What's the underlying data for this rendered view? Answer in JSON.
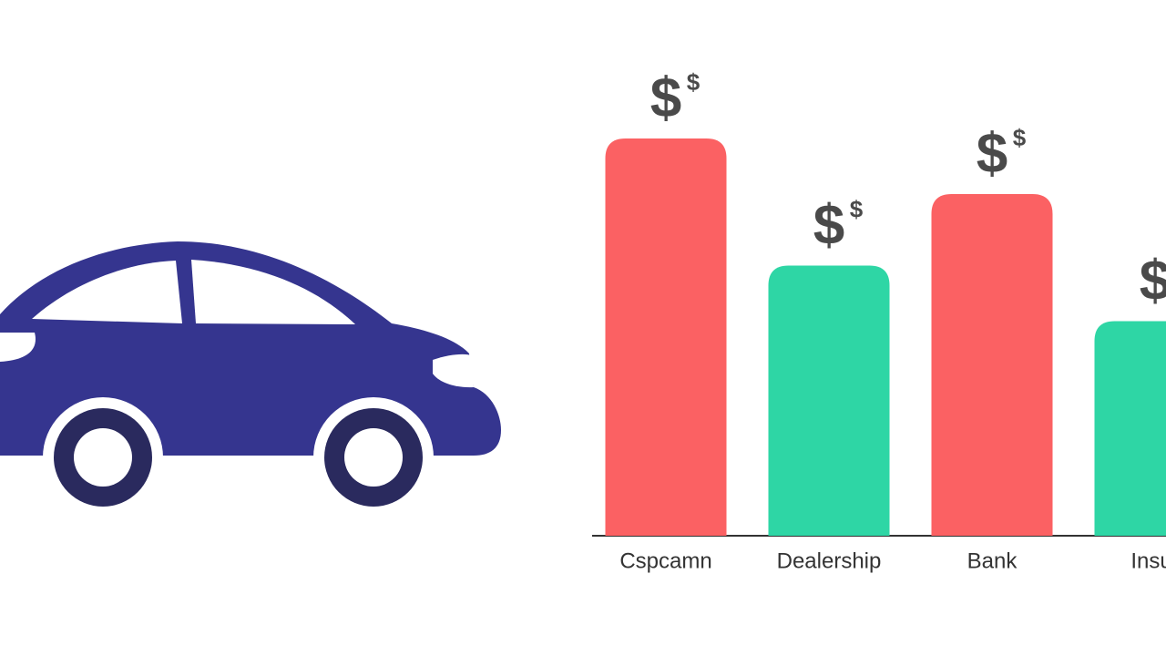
{
  "chart_data": {
    "type": "bar",
    "categories": [
      "Cspcamn",
      "Dealership",
      "Bank",
      "Insur"
    ],
    "values": [
      100,
      68,
      86,
      54
    ],
    "colors": [
      "#fb6163",
      "#2ed6a5",
      "#fb6163",
      "#2ed6a5"
    ],
    "ylim": [
      0,
      100
    ],
    "symbol": "$"
  }
}
